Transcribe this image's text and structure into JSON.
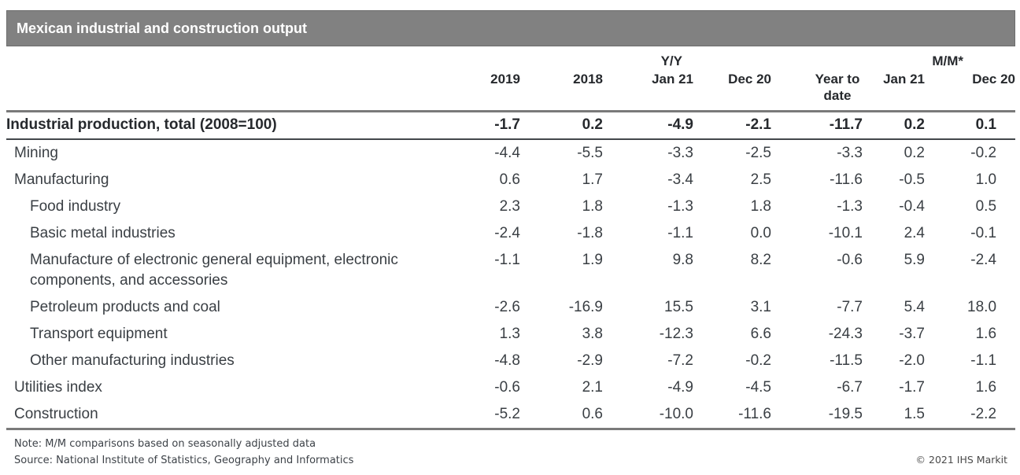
{
  "title_bar": {
    "title": "Mexican industrial and construction output"
  },
  "chart_data": {
    "type": "table",
    "title": "Mexican industrial and construction output",
    "group_headers": {
      "yy": "Y/Y",
      "mm": "M/M*"
    },
    "group_header_layout": {
      "yy_spans_columns": [
        "Jan 21"
      ],
      "mm_spans_columns": [
        "Jan 21",
        "Dec 20"
      ]
    },
    "columns": [
      "2019",
      "2018",
      "Jan 21",
      "Dec 20",
      "Year to date",
      "Jan 21",
      "Dec 20"
    ],
    "rows": [
      {
        "label": "Industrial production, total (2008=100)",
        "indent": 0,
        "bold": true,
        "values": [
          "-1.7",
          "0.2",
          "-4.9",
          "-2.1",
          "-11.7",
          "0.2",
          "0.1"
        ]
      },
      {
        "label": "Mining",
        "indent": 0,
        "bold": false,
        "values": [
          "-4.4",
          "-5.5",
          "-3.3",
          "-2.5",
          "-3.3",
          "0.2",
          "-0.2"
        ]
      },
      {
        "label": "Manufacturing",
        "indent": 0,
        "bold": false,
        "values": [
          "0.6",
          "1.7",
          "-3.4",
          "2.5",
          "-11.6",
          "-0.5",
          "1.0"
        ]
      },
      {
        "label": "Food industry",
        "indent": 1,
        "bold": false,
        "values": [
          "2.3",
          "1.8",
          "-1.3",
          "1.8",
          "-1.3",
          "-0.4",
          "0.5"
        ]
      },
      {
        "label": "Basic metal industries",
        "indent": 1,
        "bold": false,
        "values": [
          "-2.4",
          "-1.8",
          "-1.1",
          "0.0",
          "-10.1",
          "2.4",
          "-0.1"
        ]
      },
      {
        "label": "Manufacture of electronic general equipment, electronic components, and accessories",
        "indent": 1,
        "bold": false,
        "values": [
          "-1.1",
          "1.9",
          "9.8",
          "8.2",
          "-0.6",
          "5.9",
          "-2.4"
        ]
      },
      {
        "label": "Petroleum products and coal",
        "indent": 1,
        "bold": false,
        "values": [
          "-2.6",
          "-16.9",
          "15.5",
          "3.1",
          "-7.7",
          "5.4",
          "18.0"
        ]
      },
      {
        "label": "Transport equipment",
        "indent": 1,
        "bold": false,
        "values": [
          "1.3",
          "3.8",
          "-12.3",
          "6.6",
          "-24.3",
          "-3.7",
          "1.6"
        ]
      },
      {
        "label": "Other manufacturing industries",
        "indent": 1,
        "bold": false,
        "values": [
          "-4.8",
          "-2.9",
          "-7.2",
          "-0.2",
          "-11.5",
          "-2.0",
          "-1.1"
        ]
      },
      {
        "label": "Utilities index",
        "indent": 0,
        "bold": false,
        "values": [
          "-0.6",
          "2.1",
          "-4.9",
          "-4.5",
          "-6.7",
          "-1.7",
          "1.6"
        ]
      },
      {
        "label": "Construction",
        "indent": 0,
        "bold": false,
        "values": [
          "-5.2",
          "0.6",
          "-10.0",
          "-11.6",
          "-19.5",
          "1.5",
          "-2.2"
        ]
      }
    ]
  },
  "footer": {
    "note": "Note: M/M comparisons based on seasonally adjusted data",
    "source": "Source: National Institute of Statistics, Geography and Informatics",
    "copyright": "© 2021 IHS Markit"
  },
  "colors": {
    "title_bar_bg": "#818181",
    "title_bar_border": "#6d6d6d",
    "title_text": "#ffffff",
    "body_text": "#3a3f44",
    "total_text": "#26292d",
    "rule_heavy": "#7a7a7a",
    "rule_thin": "#43474b",
    "footer_text": "#3d4248",
    "copyright_text": "#4a4a4a"
  }
}
